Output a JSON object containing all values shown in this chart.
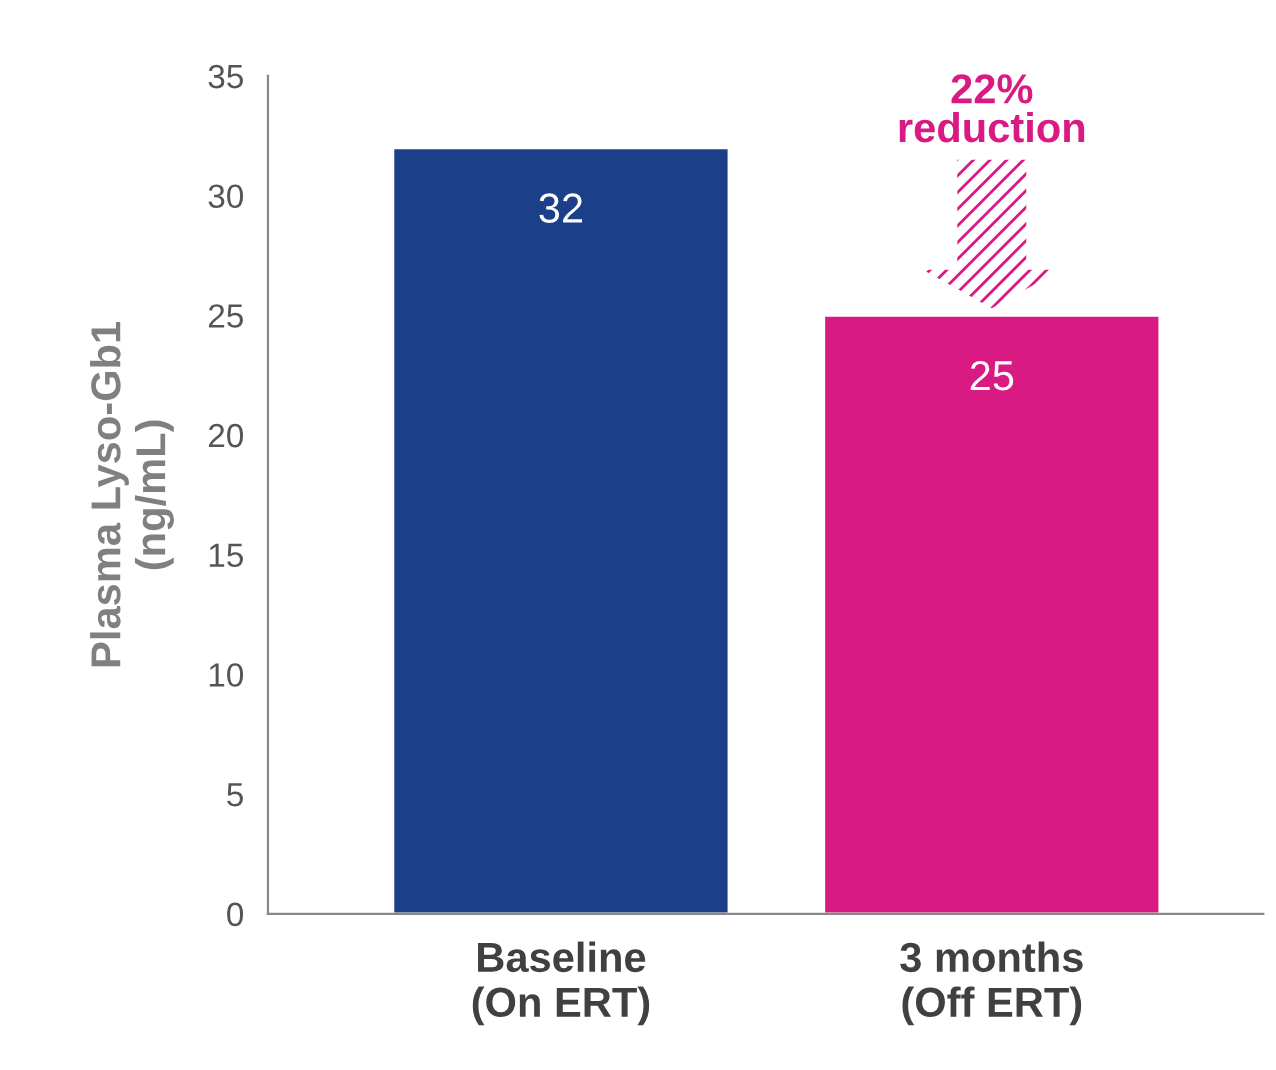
{
  "chart_data": {
    "type": "bar",
    "ylabel": "Plasma Lyso-Gb1\n(ng/mL)",
    "categories": [
      "Baseline\n(On ERT)",
      "3 months\n(Off ERT)"
    ],
    "values": [
      32,
      25
    ],
    "colors": [
      "#1c3f8a",
      "#d91a82"
    ],
    "ylim": [
      0,
      35
    ],
    "yticks": [
      0,
      5,
      10,
      15,
      20,
      25,
      30,
      35
    ],
    "data_labels": true,
    "grid": false,
    "legend": false,
    "annotations": [
      "22%\nreduction"
    ]
  }
}
